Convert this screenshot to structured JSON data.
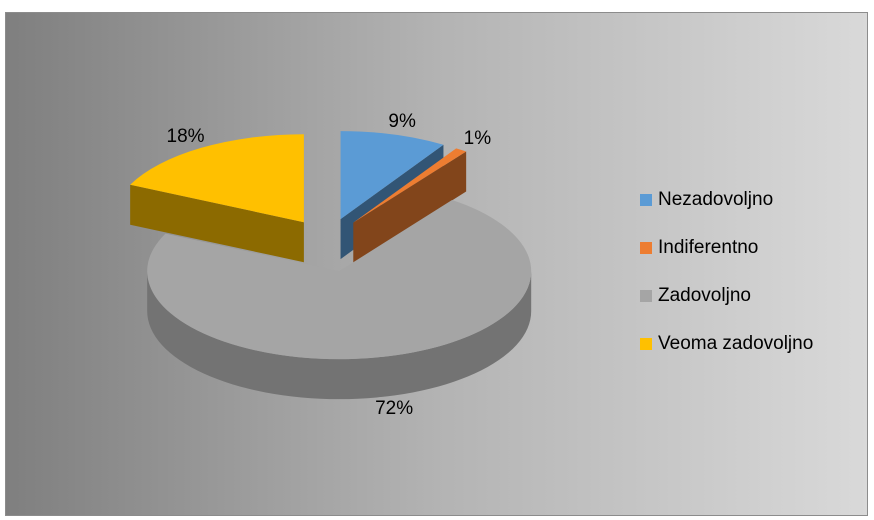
{
  "chart_data": {
    "type": "pie3d",
    "categories": [
      "Nezadovoljno",
      "Indiferentno",
      "Zadovoljno",
      "Veoma zadovoljno"
    ],
    "values": [
      9,
      1,
      72,
      18
    ],
    "value_labels": [
      "9%",
      "1%",
      "72%",
      "18%"
    ],
    "colors": [
      "#5b9bd5",
      "#ed7d31",
      "#a5a5a5",
      "#ffc000"
    ],
    "legend": "right"
  }
}
